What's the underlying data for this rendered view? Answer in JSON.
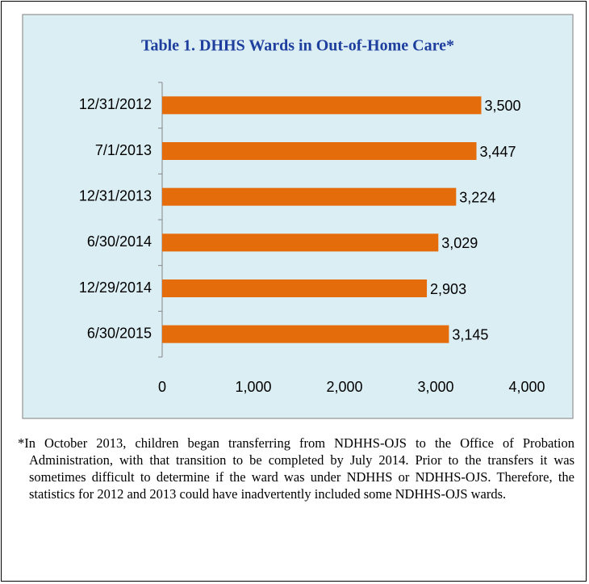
{
  "chart_data": {
    "type": "hbar",
    "title": "Table 1. DHHS Wards in Out-of-Home Care*",
    "categories": [
      "12/31/2012",
      "7/1/2013",
      "12/31/2013",
      "6/30/2014",
      "12/29/2014",
      "6/30/2015"
    ],
    "values": [
      3500,
      3447,
      3224,
      3029,
      2903,
      3145
    ],
    "value_labels": [
      "3,500",
      "3,447",
      "3,224",
      "3,029",
      "2,903",
      "3,145"
    ],
    "color": "#e46c0a",
    "xlim": [
      0,
      4000
    ],
    "xticks": [
      0,
      {
        "value": 1000,
        "label": "1,000"
      },
      {
        "value": 2000,
        "label": "2,000"
      },
      {
        "value": 3000,
        "label": "3,000"
      },
      {
        "value": 4000,
        "label": "4,000"
      }
    ],
    "grid": false,
    "footnote": "*In October 2013, children began transferring from NDHHS-OJS to the Office of Probation Administration, with that transition to be completed by July 2014.  Prior to the transfers it was sometimes difficult to determine if the ward was under NDHHS or NDHHS-OJS.  Therefore, the statistics for 2012 and 2013 could have inadvertently included some NDHHS-OJS wards."
  }
}
